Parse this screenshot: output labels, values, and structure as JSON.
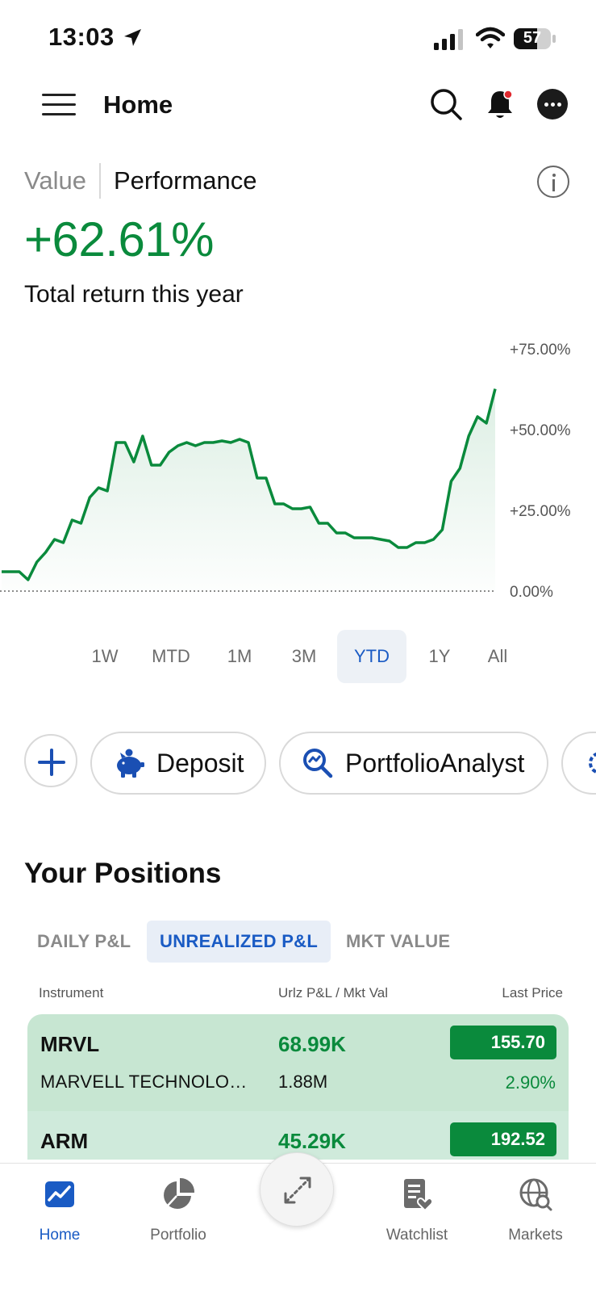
{
  "status_bar": {
    "time": "13:03",
    "battery": "57",
    "icons": [
      "location-arrow-icon",
      "signal-icon",
      "wifi-icon",
      "battery-icon"
    ]
  },
  "header": {
    "title": "Home",
    "icons": [
      "menu-icon",
      "search-icon",
      "bell-icon",
      "more-icon"
    ],
    "notification_dot_color": "#e0282e"
  },
  "performance": {
    "tab_value": "Value",
    "tab_performance": "Performance",
    "active_tab": "Performance",
    "return_value": "+62.61%",
    "caption": "Total return this year"
  },
  "chart_data": {
    "type": "area",
    "title": "",
    "xlabel": "",
    "ylabel": "",
    "ylim": [
      0,
      75
    ],
    "yticks": [
      "+75.00%",
      "+50.00%",
      "+25.00%",
      "0.00%"
    ],
    "ytick_values": [
      75,
      50,
      25,
      0
    ],
    "grid": false,
    "baseline_style": "dotted",
    "line_color": "#0a8a3c",
    "series": [
      {
        "values": [
          6,
          6,
          6,
          3.5,
          9,
          12,
          16,
          15,
          22,
          21,
          29,
          32,
          31,
          46,
          46,
          40,
          48,
          39,
          39,
          43,
          45,
          46,
          45,
          46,
          46,
          46.5,
          46,
          47,
          46,
          35,
          35,
          27,
          27,
          25.5,
          25.5,
          26,
          21,
          21,
          18,
          18,
          16.5,
          16.5,
          16.5,
          16,
          15.5,
          13.5,
          13.5,
          15,
          15,
          16,
          19,
          34,
          38,
          48,
          54,
          52,
          62.6
        ]
      }
    ]
  },
  "ranges": {
    "items": [
      "1W",
      "MTD",
      "1M",
      "3M",
      "YTD",
      "1Y",
      "All"
    ],
    "active": "YTD"
  },
  "actions": {
    "add_icon": "plus-icon",
    "deposit_label": "Deposit",
    "deposit_icon": "piggy-bank-icon",
    "analyst_label": "PortfolioAnalyst",
    "analyst_icon": "analytics-search-icon",
    "more_icon": "refresh-icon"
  },
  "positions": {
    "title": "Your Positions",
    "tabs": [
      "DAILY P&L",
      "UNREALIZED P&L",
      "MKT VALUE"
    ],
    "active_tab": "UNREALIZED P&L",
    "columns": {
      "instrument": "Instrument",
      "pnl_mkt": "Urlz P&L / Mkt Val",
      "last_price": "Last Price"
    },
    "rows": [
      {
        "symbol": "MRVL",
        "name": "MARVELL TECHNOLO…",
        "pnl": "68.99K",
        "mkt_val": "1.88M",
        "last_price": "155.70",
        "change": "2.90%"
      },
      {
        "symbol": "ARM",
        "name": "",
        "pnl": "45.29K",
        "mkt_val": "",
        "last_price": "192.52",
        "change": ""
      }
    ]
  },
  "bottom_nav": {
    "items": [
      {
        "label": "Home",
        "icon": "home-chart-icon"
      },
      {
        "label": "Portfolio",
        "icon": "pie-chart-icon"
      },
      {
        "label": "Watchlist",
        "icon": "watchlist-icon"
      },
      {
        "label": "Markets",
        "icon": "globe-search-icon"
      }
    ],
    "active": "Home",
    "fab_icon": "expand-arrows-icon"
  },
  "colors": {
    "positive": "#0a8a3c",
    "accent": "#1a5bc4",
    "row_bg": "#c7e6d2"
  }
}
